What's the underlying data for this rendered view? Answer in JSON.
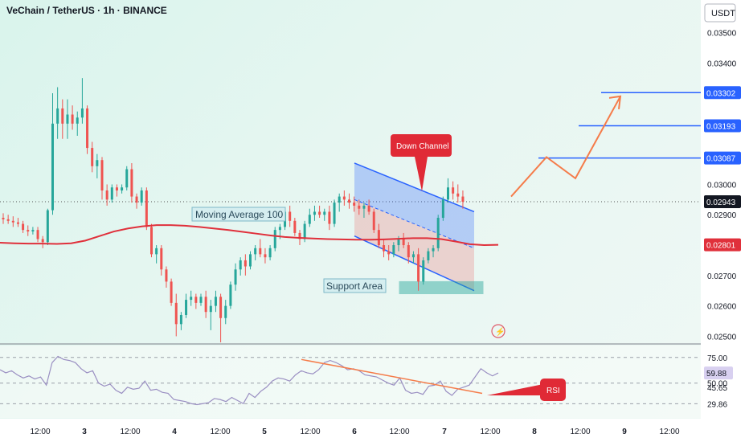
{
  "header": {
    "title": "VeChain / TetherUS · 1h · BINANCE",
    "currency": "USDT"
  },
  "chart_data": {
    "type": "candlestick",
    "price_axis": {
      "ticks": [
        "0.03500",
        "0.03400",
        "0.03302",
        "0.03193",
        "0.03087",
        "0.03000",
        "0.02943",
        "0.02900",
        "0.02801",
        "0.02700",
        "0.02600",
        "0.02500"
      ],
      "range": [
        0.0248,
        0.0357
      ],
      "current_price": "0.02943",
      "ma_price": "0.02801"
    },
    "time_axis": {
      "labels": [
        "12:00",
        "3",
        "12:00",
        "4",
        "12:00",
        "5",
        "12:00",
        "6",
        "12:00",
        "7",
        "12:00",
        "8",
        "12:00",
        "9",
        "12:00"
      ]
    },
    "rsi_axis": {
      "ticks": [
        "75.00",
        "59.88",
        "50.00",
        "45.65",
        "29.86"
      ],
      "current": "59.88",
      "range": [
        20,
        85
      ]
    },
    "candles": [
      [
        0.0289,
        0.02905,
        0.0287,
        0.02885
      ],
      [
        0.02885,
        0.029,
        0.0287,
        0.0288
      ],
      [
        0.0288,
        0.02895,
        0.0286,
        0.02875
      ],
      [
        0.02875,
        0.0289,
        0.0286,
        0.0287
      ],
      [
        0.0287,
        0.0288,
        0.0284,
        0.0285
      ],
      [
        0.0285,
        0.02865,
        0.0283,
        0.02845
      ],
      [
        0.02845,
        0.0286,
        0.02835,
        0.0285
      ],
      [
        0.0285,
        0.0286,
        0.0281,
        0.0282
      ],
      [
        0.0282,
        0.0283,
        0.0279,
        0.0281
      ],
      [
        0.0281,
        0.0292,
        0.028,
        0.02915
      ],
      [
        0.02915,
        0.033,
        0.029,
        0.032
      ],
      [
        0.032,
        0.0332,
        0.0315,
        0.0325
      ],
      [
        0.0325,
        0.0328,
        0.0315,
        0.032
      ],
      [
        0.032,
        0.0328,
        0.0315,
        0.0323
      ],
      [
        0.0323,
        0.0326,
        0.0318,
        0.032
      ],
      [
        0.032,
        0.0324,
        0.0316,
        0.0322
      ],
      [
        0.0322,
        0.0335,
        0.032,
        0.0325
      ],
      [
        0.0325,
        0.0326,
        0.031,
        0.0312
      ],
      [
        0.0312,
        0.0314,
        0.0304,
        0.0306
      ],
      [
        0.0306,
        0.031,
        0.0302,
        0.0308
      ],
      [
        0.0308,
        0.0309,
        0.0295,
        0.0298
      ],
      [
        0.0298,
        0.03,
        0.0293,
        0.0295
      ],
      [
        0.0295,
        0.03,
        0.0294,
        0.0299
      ],
      [
        0.0299,
        0.03,
        0.0296,
        0.0298
      ],
      [
        0.0298,
        0.03,
        0.0297,
        0.0299
      ],
      [
        0.0299,
        0.0306,
        0.0298,
        0.0305
      ],
      [
        0.0305,
        0.0307,
        0.0294,
        0.0296
      ],
      [
        0.0296,
        0.0297,
        0.0292,
        0.0294
      ],
      [
        0.0294,
        0.0299,
        0.0293,
        0.0298
      ],
      [
        0.0298,
        0.0299,
        0.0285,
        0.0286
      ],
      [
        0.0286,
        0.0287,
        0.0276,
        0.0277
      ],
      [
        0.0277,
        0.028,
        0.0274,
        0.0279
      ],
      [
        0.0279,
        0.028,
        0.027,
        0.0272
      ],
      [
        0.0272,
        0.0273,
        0.0266,
        0.0268
      ],
      [
        0.0268,
        0.0269,
        0.026,
        0.0261
      ],
      [
        0.0261,
        0.0264,
        0.025,
        0.0254
      ],
      [
        0.0254,
        0.0258,
        0.0252,
        0.0257
      ],
      [
        0.0257,
        0.0264,
        0.0256,
        0.0262
      ],
      [
        0.0262,
        0.0265,
        0.026,
        0.0263
      ],
      [
        0.0263,
        0.0264,
        0.0259,
        0.0261
      ],
      [
        0.0261,
        0.0264,
        0.026,
        0.0263
      ],
      [
        0.0263,
        0.0265,
        0.0256,
        0.0258
      ],
      [
        0.0258,
        0.0262,
        0.0252,
        0.026
      ],
      [
        0.026,
        0.0265,
        0.0258,
        0.0263
      ],
      [
        0.0263,
        0.0264,
        0.0248,
        0.0256
      ],
      [
        0.0256,
        0.0262,
        0.0254,
        0.026
      ],
      [
        0.026,
        0.0268,
        0.0259,
        0.0267
      ],
      [
        0.0267,
        0.0274,
        0.0265,
        0.0272
      ],
      [
        0.0272,
        0.0276,
        0.027,
        0.0275
      ],
      [
        0.0275,
        0.0277,
        0.027,
        0.0273
      ],
      [
        0.0273,
        0.0278,
        0.0272,
        0.0277
      ],
      [
        0.0277,
        0.028,
        0.0275,
        0.0279
      ],
      [
        0.0279,
        0.0282,
        0.0276,
        0.0277
      ],
      [
        0.0277,
        0.0279,
        0.0274,
        0.0276
      ],
      [
        0.0276,
        0.028,
        0.0275,
        0.0279
      ],
      [
        0.0279,
        0.0286,
        0.0278,
        0.0285
      ],
      [
        0.0285,
        0.0287,
        0.0282,
        0.0286
      ],
      [
        0.0286,
        0.0292,
        0.0285,
        0.0291
      ],
      [
        0.0291,
        0.0293,
        0.0286,
        0.0288
      ],
      [
        0.0288,
        0.0289,
        0.0283,
        0.0284
      ],
      [
        0.0284,
        0.0285,
        0.028,
        0.0282
      ],
      [
        0.0282,
        0.0288,
        0.0281,
        0.0287
      ],
      [
        0.0287,
        0.0292,
        0.0286,
        0.029
      ],
      [
        0.029,
        0.0293,
        0.0288,
        0.0291
      ],
      [
        0.0291,
        0.0293,
        0.0289,
        0.029
      ],
      [
        0.029,
        0.0292,
        0.0288,
        0.0291
      ],
      [
        0.0291,
        0.0293,
        0.0285,
        0.0287
      ],
      [
        0.0287,
        0.0295,
        0.0286,
        0.0294
      ],
      [
        0.0294,
        0.0297,
        0.0291,
        0.0296
      ],
      [
        0.0296,
        0.0298,
        0.0293,
        0.0295
      ],
      [
        0.0295,
        0.0297,
        0.0292,
        0.0294
      ],
      [
        0.0294,
        0.0296,
        0.0291,
        0.0293
      ],
      [
        0.0293,
        0.0295,
        0.029,
        0.0292
      ],
      [
        0.0292,
        0.0294,
        0.0289,
        0.0293
      ],
      [
        0.0293,
        0.0295,
        0.029,
        0.0291
      ],
      [
        0.0291,
        0.0292,
        0.0284,
        0.0285
      ],
      [
        0.0285,
        0.0287,
        0.0279,
        0.028
      ],
      [
        0.028,
        0.0282,
        0.0276,
        0.0278
      ],
      [
        0.0278,
        0.028,
        0.0275,
        0.0277
      ],
      [
        0.0277,
        0.0281,
        0.0276,
        0.028
      ],
      [
        0.028,
        0.0283,
        0.0278,
        0.0282
      ],
      [
        0.0282,
        0.0284,
        0.0279,
        0.028
      ],
      [
        0.028,
        0.0281,
        0.0274,
        0.0276
      ],
      [
        0.0276,
        0.0278,
        0.0274,
        0.0277
      ],
      [
        0.0277,
        0.0279,
        0.0265,
        0.0268
      ],
      [
        0.0268,
        0.0276,
        0.0267,
        0.0275
      ],
      [
        0.0275,
        0.0279,
        0.0274,
        0.0278
      ],
      [
        0.0278,
        0.028,
        0.0276,
        0.0279
      ],
      [
        0.0279,
        0.029,
        0.0278,
        0.0289
      ],
      [
        0.0289,
        0.0296,
        0.0288,
        0.0295
      ],
      [
        0.0295,
        0.0302,
        0.0294,
        0.0299
      ],
      [
        0.0299,
        0.0301,
        0.0295,
        0.0297
      ],
      [
        0.0297,
        0.03,
        0.0294,
        0.0296
      ],
      [
        0.0296,
        0.0298,
        0.0292,
        0.02943
      ]
    ],
    "moving_average": {
      "label": "Moving Average 100",
      "values": [
        0.02808,
        0.02806,
        0.02805,
        0.02805,
        0.02804,
        0.02806,
        0.02815,
        0.0283,
        0.02845,
        0.02855,
        0.02862,
        0.02866,
        0.02866,
        0.02864,
        0.0286,
        0.02855,
        0.0285,
        0.02844,
        0.02838,
        0.02832,
        0.02827,
        0.02824,
        0.02822,
        0.0282,
        0.02819,
        0.02818,
        0.02818,
        0.02819,
        0.02821,
        0.02823,
        0.02823,
        0.0282,
        0.02812,
        0.02803,
        0.028,
        0.02801
      ]
    },
    "rsi": {
      "values": [
        63,
        60,
        62,
        58,
        55,
        57,
        54,
        56,
        48,
        70,
        76,
        73,
        72,
        70,
        64,
        60,
        62,
        50,
        47,
        49,
        43,
        40,
        46,
        44,
        45,
        52,
        43,
        44,
        41,
        40,
        34,
        33,
        32,
        30,
        29,
        30,
        31,
        35,
        34,
        32,
        36,
        33,
        30,
        40,
        36,
        42,
        46,
        52,
        55,
        54,
        52,
        58,
        62,
        60,
        59,
        63,
        70,
        72,
        70,
        67,
        63,
        64,
        62,
        58,
        57,
        56,
        53,
        50,
        48,
        55,
        43,
        40,
        41,
        39,
        47,
        48,
        52,
        42,
        38,
        44,
        46,
        48,
        56,
        64,
        60,
        57,
        59.88
      ]
    },
    "levels": [
      {
        "price": "0.03302",
        "color": "#2962ff"
      },
      {
        "price": "0.03193",
        "color": "#2962ff"
      },
      {
        "price": "0.03087",
        "color": "#2962ff"
      }
    ]
  },
  "annotations": {
    "down_channel": "Down Channel",
    "support_area": "Support Area",
    "moving_average": "Moving Average 100",
    "rsi": "RSI"
  },
  "colors": {
    "up": "#26a69a",
    "down": "#ef5350",
    "ma": "#e0303b",
    "level": "#2962ff",
    "projection": "#f57c4a",
    "channel": "#2962ff",
    "rsi": "#9a8fc2",
    "callout": "#e02a36"
  }
}
